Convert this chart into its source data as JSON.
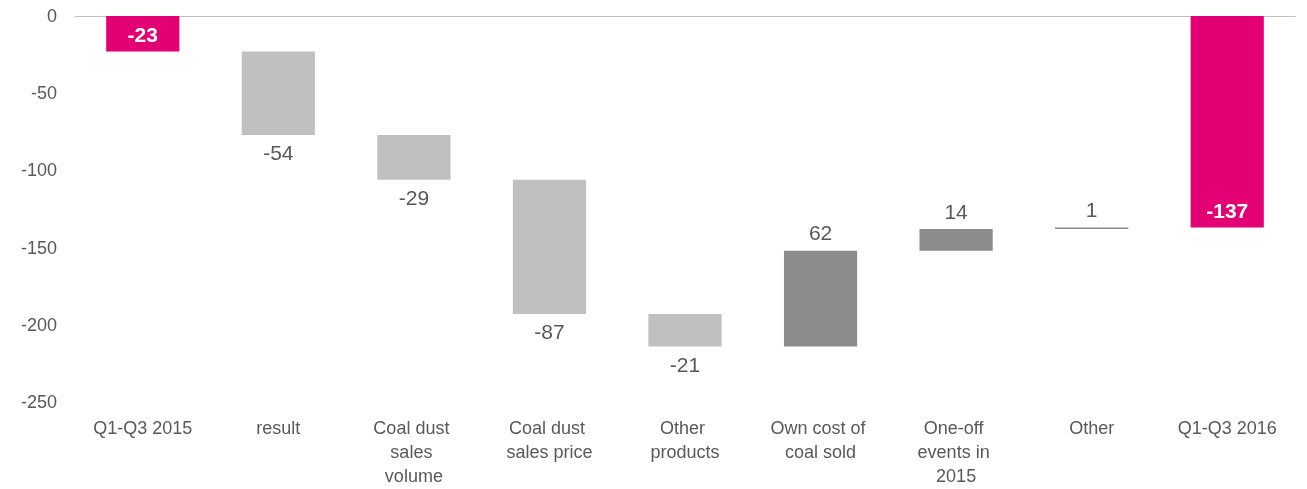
{
  "chart_data": {
    "type": "bar",
    "categories": [
      "Q1-Q3 2015",
      "result",
      "Coal dust sales volume",
      "Coal dust sales price",
      "Other products",
      "Own cost of coal sold",
      "One-off events in 2015",
      "Other",
      "Q1-Q3 2016"
    ],
    "values": [
      -23,
      -54,
      -29,
      -87,
      -21,
      62,
      14,
      1,
      -137
    ],
    "base": [
      0,
      -23,
      -77,
      -106,
      -193,
      -214,
      -152,
      -138,
      0
    ],
    "colors": [
      "#e20074",
      "#c0c0c0",
      "#c0c0c0",
      "#c0c0c0",
      "#c0c0c0",
      "#8c8c8c",
      "#8c8c8c",
      "#8c8c8c",
      "#e20074"
    ],
    "ylim": [
      -250,
      0
    ],
    "yticks": [
      -250,
      -200,
      -150,
      -100,
      -50,
      0
    ],
    "data_labels": true,
    "grid": false
  }
}
